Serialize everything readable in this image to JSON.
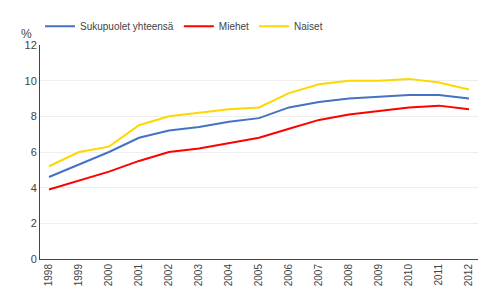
{
  "chart_data": {
    "type": "line",
    "ylabel": "%",
    "x": [
      1998,
      1999,
      2000,
      2001,
      2002,
      2003,
      2004,
      2005,
      2006,
      2007,
      2008,
      2009,
      2010,
      2011,
      2012
    ],
    "series": [
      {
        "name": "Sukupuolet yhteensä",
        "color": "#4472C4",
        "values": [
          4.6,
          5.3,
          6.0,
          6.8,
          7.2,
          7.4,
          7.7,
          7.9,
          8.5,
          8.8,
          9.0,
          9.1,
          9.2,
          9.2,
          9.0
        ]
      },
      {
        "name": "Miehet",
        "color": "#FF0000",
        "values": [
          3.9,
          4.4,
          4.9,
          5.5,
          6.0,
          6.2,
          6.5,
          6.8,
          7.3,
          7.8,
          8.1,
          8.3,
          8.5,
          8.6,
          8.4
        ]
      },
      {
        "name": "Naiset",
        "color": "#FFD700",
        "values": [
          5.2,
          6.0,
          6.3,
          7.5,
          8.0,
          8.2,
          8.4,
          8.5,
          9.3,
          9.8,
          10.0,
          10.0,
          10.1,
          9.9,
          9.5
        ]
      }
    ],
    "xlim": [
      1997.7,
      2012.3
    ],
    "xticks": [
      1998,
      1999,
      2000,
      2001,
      2002,
      2003,
      2004,
      2005,
      2006,
      2007,
      2008,
      2009,
      2010,
      2011,
      2012
    ],
    "ylim": [
      0,
      12
    ],
    "yticks": [
      0,
      2,
      4,
      6,
      8,
      10,
      12
    ],
    "grid": true,
    "legend": "upper left"
  }
}
